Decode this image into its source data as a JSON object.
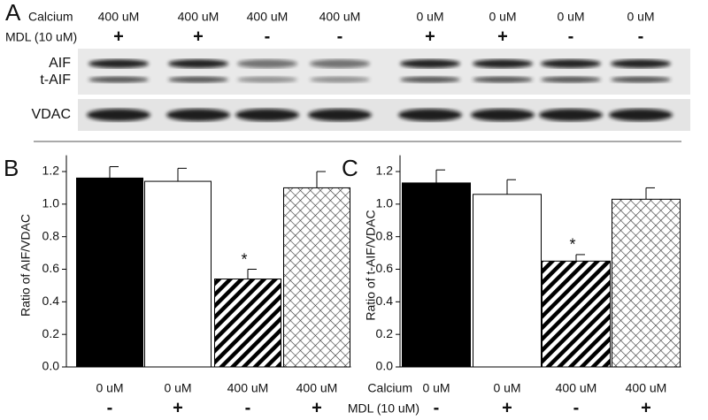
{
  "blot": {
    "panel_label": "A",
    "row_labels": [
      "Calcium",
      "MDL (10 uM)"
    ],
    "calcium": [
      "400 uM",
      "400 uM",
      "400 uM",
      "400 uM",
      "0 uM",
      "0 uM",
      "0 uM",
      "0 uM"
    ],
    "mdl": [
      "+",
      "+",
      "-",
      "-",
      "+",
      "+",
      "-",
      "-"
    ],
    "band_labels": [
      "AIF",
      "t-AIF",
      "VDAC"
    ]
  },
  "chart_data": [
    {
      "type": "bar",
      "panel_label": "B",
      "y_label": "Ratio of AIF/VDAC",
      "categories": [
        "0 uM",
        "0 uM",
        "400 uM",
        "400 uM"
      ],
      "mdl": [
        "-",
        "+",
        "-",
        "+"
      ],
      "values": [
        1.16,
        1.14,
        0.54,
        1.1
      ],
      "errors": [
        0.07,
        0.08,
        0.06,
        0.1
      ],
      "fills": [
        "solid",
        "empty",
        "diagonal",
        "crosshatch"
      ],
      "annotations": [
        null,
        null,
        "*",
        null
      ],
      "ylim": [
        0,
        1.3
      ],
      "yticks": [
        {
          "value": 0,
          "label": "0.0"
        },
        0.2,
        0.4,
        0.6,
        0.8,
        {
          "value": 1,
          "label": "1.0"
        },
        1.2
      ]
    },
    {
      "type": "bar",
      "panel_label": "C",
      "y_label": "Ratio of t-AIF/VDAC",
      "row_labels": [
        "Calcium",
        "MDL (10 uM)"
      ],
      "categories": [
        "0 uM",
        "0 uM",
        "400 uM",
        "400 uM"
      ],
      "mdl": [
        "-",
        "+",
        "-",
        "+"
      ],
      "values": [
        1.13,
        1.06,
        0.65,
        1.03
      ],
      "errors": [
        0.08,
        0.09,
        0.04,
        0.07
      ],
      "fills": [
        "solid",
        "empty",
        "diagonal",
        "crosshatch"
      ],
      "annotations": [
        null,
        null,
        "*",
        null
      ],
      "ylim": [
        0,
        1.3
      ],
      "yticks": [
        {
          "value": 0,
          "label": "0.0"
        },
        0.2,
        0.4,
        0.6,
        0.8,
        {
          "value": 1,
          "label": "1.0"
        },
        1.2
      ]
    }
  ]
}
